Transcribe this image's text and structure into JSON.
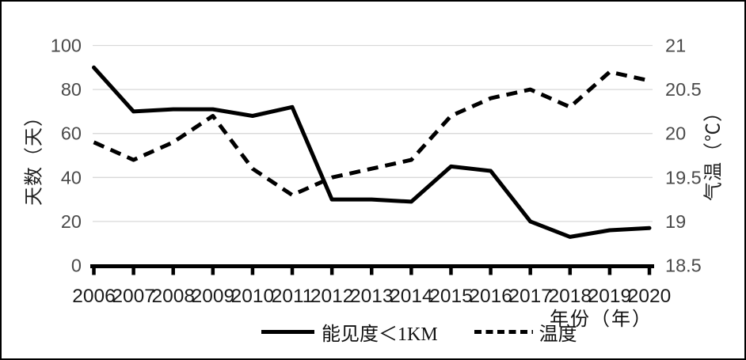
{
  "figure": {
    "background": "#ffffff",
    "border_color": "#000000"
  },
  "chart_data": {
    "type": "line",
    "title": "",
    "categories": [
      "2006",
      "2007",
      "2008",
      "2009",
      "2010",
      "2011",
      "2012",
      "2013",
      "2014",
      "2015",
      "2016",
      "2017",
      "2018",
      "2019",
      "2020"
    ],
    "x_axis": {
      "label": "年份（年）"
    },
    "left_axis": {
      "label": "天数（天）",
      "ticks": [
        0,
        20,
        40,
        60,
        80,
        100
      ],
      "range": [
        0,
        100
      ]
    },
    "right_axis": {
      "label": "气温（℃）",
      "ticks": [
        18.5,
        19,
        19.5,
        20,
        20.5,
        21
      ],
      "range": [
        18.5,
        21
      ]
    },
    "grid": true,
    "legend_position": "bottom",
    "grid_color": "#d9d9d9",
    "axis_color": "#000000",
    "tick_label_color": "#4a4a4a",
    "category_label_color": "#1a1a1a",
    "series": [
      {
        "name": "能见度＜1KM",
        "axis": "left",
        "line_style": "solid",
        "color": "#000000",
        "values": [
          90,
          70,
          71,
          71,
          68,
          72,
          30,
          30,
          29,
          45,
          43,
          20,
          13,
          16,
          17
        ]
      },
      {
        "name": "温度",
        "axis": "right",
        "line_style": "dashed",
        "color": "#000000",
        "values": [
          19.9,
          19.7,
          19.9,
          20.2,
          19.6,
          19.3,
          19.5,
          19.6,
          19.7,
          20.2,
          20.4,
          20.5,
          20.3,
          20.7,
          20.6
        ]
      }
    ]
  }
}
